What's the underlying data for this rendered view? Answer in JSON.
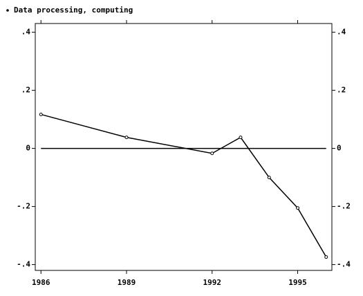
{
  "chart_data": {
    "type": "line",
    "series": [
      {
        "name": "Data processing, computing",
        "color": "#000000",
        "x": [
          1986,
          1989,
          1992,
          1993,
          1994,
          1995,
          1996
        ],
        "values": [
          0.117,
          0.038,
          -0.017,
          0.038,
          -0.1,
          -0.205,
          -0.374
        ]
      }
    ],
    "xlim": [
      1985.8,
      1996.2
    ],
    "xticks": [
      1986,
      1989,
      1992,
      1995
    ],
    "ylim": [
      -0.42,
      0.43
    ],
    "yticks": [
      {
        "value": 0.4,
        "label": ".4"
      },
      {
        "value": 0.2,
        "label": ".2"
      },
      0,
      {
        "value": -0.2,
        "label": "-.2"
      },
      {
        "value": -0.4,
        "label": "-.4"
      }
    ],
    "yline": 0
  }
}
